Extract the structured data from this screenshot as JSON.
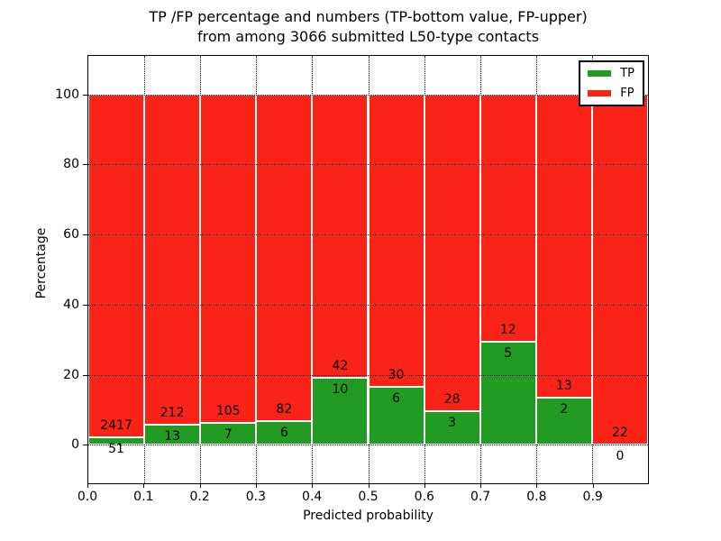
{
  "title": {
    "line1": "TP /FP percentage and numbers (TP-bottom value, FP-upper)",
    "line2": "from among 3066 submitted L50-type contacts"
  },
  "chart_data": {
    "type": "bar",
    "stacked": true,
    "title": "TP /FP percentage and numbers (TP-bottom value, FP-upper) from among 3066 submitted L50-type contacts",
    "xlabel": "Predicted probability",
    "ylabel": "Percentage",
    "total_contacts": 3066,
    "xlim": [
      0.0,
      1.0
    ],
    "ylim": [
      -11,
      111
    ],
    "grid": true,
    "x_ticks": [
      "0.0",
      "0.1",
      "0.2",
      "0.3",
      "0.4",
      "0.5",
      "0.6",
      "0.7",
      "0.8",
      "0.9"
    ],
    "y_ticks": [
      "0",
      "20",
      "40",
      "60",
      "80",
      "100"
    ],
    "y_tick_values": [
      0,
      20,
      40,
      60,
      80,
      100
    ],
    "bin_width": 0.1,
    "bins": [
      {
        "range": [
          0.0,
          0.1
        ],
        "tp": 51,
        "fp": 2417,
        "tp_pct": 2.07
      },
      {
        "range": [
          0.1,
          0.2
        ],
        "tp": 13,
        "fp": 212,
        "tp_pct": 5.78
      },
      {
        "range": [
          0.2,
          0.3
        ],
        "tp": 7,
        "fp": 105,
        "tp_pct": 6.25
      },
      {
        "range": [
          0.3,
          0.4
        ],
        "tp": 6,
        "fp": 82,
        "tp_pct": 6.82
      },
      {
        "range": [
          0.4,
          0.5
        ],
        "tp": 10,
        "fp": 42,
        "tp_pct": 19.23
      },
      {
        "range": [
          0.5,
          0.6
        ],
        "tp": 6,
        "fp": 30,
        "tp_pct": 16.67
      },
      {
        "range": [
          0.6,
          0.7
        ],
        "tp": 3,
        "fp": 28,
        "tp_pct": 9.68
      },
      {
        "range": [
          0.7,
          0.8
        ],
        "tp": 5,
        "fp": 12,
        "tp_pct": 29.41
      },
      {
        "range": [
          0.8,
          0.9
        ],
        "tp": 2,
        "fp": 13,
        "tp_pct": 13.33
      },
      {
        "range": [
          0.9,
          1.0
        ],
        "tp": 0,
        "fp": 22,
        "tp_pct": 0.0
      }
    ],
    "series": [
      {
        "name": "TP",
        "color": "#229b22"
      },
      {
        "name": "FP",
        "color": "#fa2317"
      }
    ],
    "legend": {
      "position": "upper right"
    }
  }
}
